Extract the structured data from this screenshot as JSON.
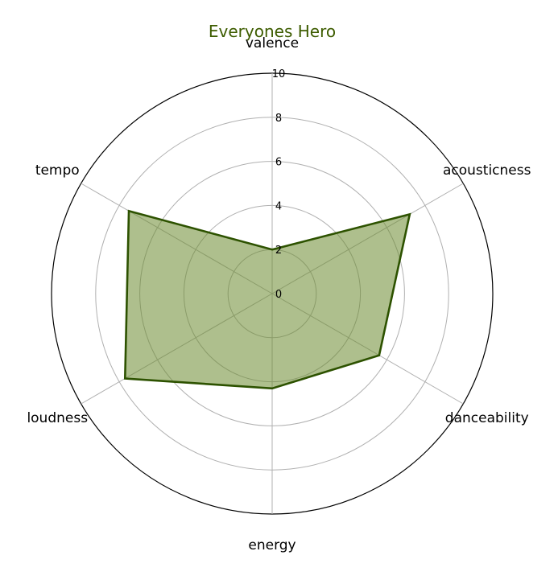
{
  "chart_data": {
    "type": "radar",
    "title": "Everyones Hero",
    "categories": [
      "valence",
      "acousticness",
      "danceability",
      "energy",
      "loudness",
      "tempo"
    ],
    "series": [
      {
        "values": [
          2,
          7.2,
          5.6,
          4.3,
          7.7,
          7.5
        ]
      }
    ],
    "rlim": [
      0,
      10
    ],
    "rticks": [
      "0",
      "2",
      "4",
      "6",
      "8",
      "10"
    ],
    "grid": true,
    "colors": {
      "line": "#2d5200",
      "fill": "#6b8a2f",
      "title": "#3d5c00"
    }
  }
}
